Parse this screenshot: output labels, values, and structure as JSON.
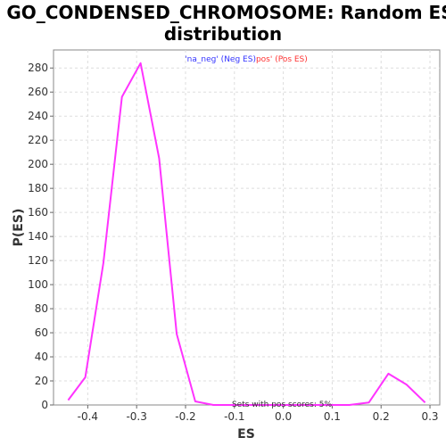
{
  "chart_data": {
    "type": "line",
    "title_line1": "GO_CONDENSED_CHROMOSOME: Random ES",
    "title_line2": "distribution",
    "xlabel": "ES",
    "ylabel": "P(ES)",
    "xlim": [
      -0.47,
      0.32
    ],
    "ylim": [
      0,
      295
    ],
    "x_ticks": [
      -0.4,
      -0.3,
      -0.2,
      -0.1,
      0.0,
      0.1,
      0.2,
      0.3
    ],
    "x_tick_labels": [
      "-0.4",
      "-0.3",
      "-0.2",
      "-0.1",
      "0.0",
      "0.1",
      "0.2",
      "0.3"
    ],
    "y_ticks": [
      0,
      20,
      40,
      60,
      80,
      100,
      120,
      140,
      160,
      180,
      200,
      220,
      240,
      260,
      280
    ],
    "y_tick_labels": [
      "0",
      "20",
      "40",
      "60",
      "80",
      "100",
      "120",
      "140",
      "160",
      "180",
      "200",
      "220",
      "240",
      "260",
      "280"
    ],
    "grid": true,
    "legend": {
      "placement": "top-center",
      "entries": [
        {
          "text": "'na_neg' (Neg ES)",
          "color": "#3333ff"
        },
        {
          "text": "pos' (Pos ES)",
          "color": "#ff3333"
        }
      ]
    },
    "annotation": "Sets with pos scores: 5%",
    "series": [
      {
        "color": "#ff33ff",
        "x": [
          -0.44,
          -0.405,
          -0.368,
          -0.33,
          -0.292,
          -0.254,
          -0.218,
          -0.18,
          -0.143,
          -0.1,
          0.0,
          0.1,
          0.135,
          0.175,
          0.215,
          0.252,
          0.29
        ],
        "y": [
          4,
          23,
          118,
          256,
          284,
          205,
          59,
          3,
          0,
          0,
          0,
          0,
          0,
          2,
          26,
          17,
          2
        ]
      }
    ]
  }
}
